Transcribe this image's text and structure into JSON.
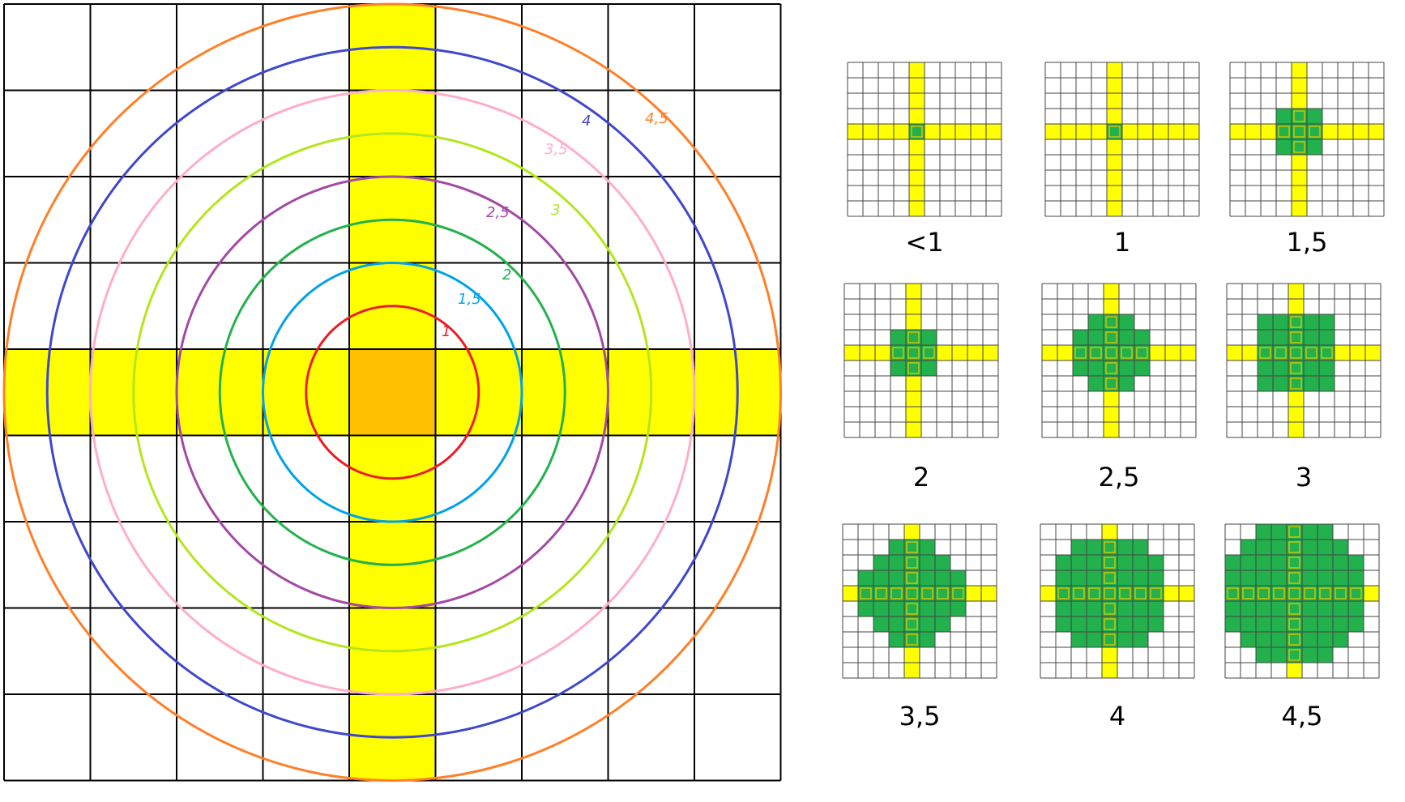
{
  "colors": {
    "grid": "#000000",
    "thin_grid": "#444444",
    "axis": "#ffff00",
    "center": "#ffc000",
    "fill": "#22b14c",
    "fill_border": "#c8c800"
  },
  "main": {
    "rings": [
      {
        "radius": 1,
        "label": "1",
        "color": "#ed1c24"
      },
      {
        "radius": 1.5,
        "label": "1,5",
        "color": "#00a2e8"
      },
      {
        "radius": 2,
        "label": "2",
        "color": "#22b14c"
      },
      {
        "radius": 2.5,
        "label": "2,5",
        "color": "#a349a4"
      },
      {
        "radius": 3,
        "label": "3",
        "color": "#b5e61d"
      },
      {
        "radius": 3.5,
        "label": "3,5",
        "color": "#ffaec9"
      },
      {
        "radius": 4,
        "label": "4",
        "color": "#3f48cc"
      },
      {
        "radius": 4.5,
        "label": "4,5",
        "color": "#ff7f27"
      }
    ]
  },
  "thumbnails": [
    {
      "label": "<1",
      "radius": 0.5
    },
    {
      "label": "1",
      "radius": 1
    },
    {
      "label": "1,5",
      "radius": 1.5
    },
    {
      "label": "2",
      "radius": 2
    },
    {
      "label": "2,5",
      "radius": 2.5
    },
    {
      "label": "3",
      "radius": 3
    },
    {
      "label": "3,5",
      "radius": 3.5
    },
    {
      "label": "4",
      "radius": 4
    },
    {
      "label": "4,5",
      "radius": 4.5
    }
  ]
}
